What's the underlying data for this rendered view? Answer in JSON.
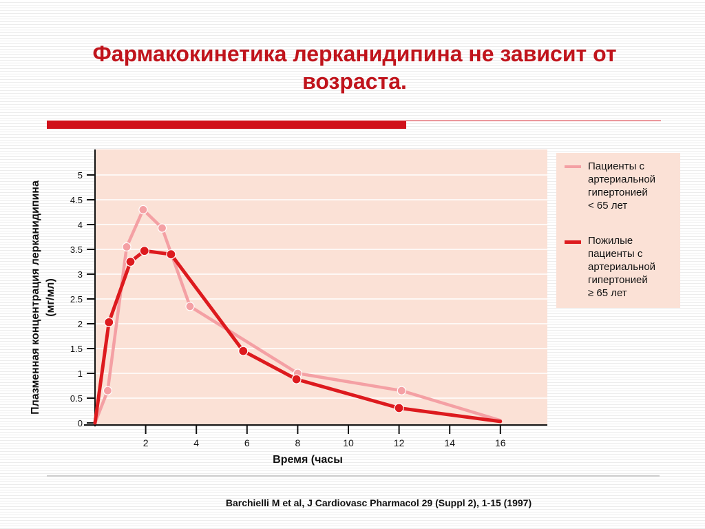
{
  "title_line1": "Фармакокинетика лерканидипина не зависит от",
  "title_line2": "возраста.",
  "colors": {
    "title": "#c0141c",
    "plot_background": "#fbe1d6",
    "series_young": "#f4a0a4",
    "series_elderly": "#dd1a1e",
    "accent_bar": "#d0101a"
  },
  "chart_data": {
    "type": "line",
    "xlabel": "Время  (часы",
    "ylabel_line1": "Плазменная концентрация лерканидипина",
    "ylabel_line2": "(мг/мл)",
    "xlim": [
      0,
      17.5
    ],
    "ylim": [
      0,
      5.5
    ],
    "x_ticks": [
      2,
      4,
      6,
      8,
      10,
      12,
      14,
      16
    ],
    "y_ticks": [
      0,
      0.5,
      1,
      1.5,
      2,
      2.5,
      3,
      3.5,
      4,
      4.5,
      5
    ],
    "x_tick_labels": [
      "2",
      "4",
      "6",
      "8",
      "10",
      "12",
      "14",
      "16"
    ],
    "y_tick_labels": [
      "0",
      "0.5",
      "1",
      "1.5",
      "2",
      "2.5",
      "3",
      "3.5",
      "4",
      "4.5",
      "5"
    ],
    "grid": true,
    "legend_position": "right",
    "series": [
      {
        "name": "Пациенты с артериальной гипертонией < 65 лет",
        "legend_lines": [
          "Пациенты с",
          "артериальной",
          "гипертонией",
          "< 65 лет"
        ],
        "color": "#f4a0a4",
        "x": [
          0,
          0.5,
          1.25,
          1.9,
          2.65,
          3.75,
          8,
          12.1,
          16
        ],
        "y": [
          0,
          0.65,
          3.55,
          4.3,
          3.93,
          2.35,
          1.0,
          0.65,
          0.05
        ],
        "markers": [
          false,
          true,
          true,
          true,
          true,
          true,
          true,
          true,
          false
        ]
      },
      {
        "name": "Пожилые пациенты с артериальной гипертонией ≥ 65 лет",
        "legend_lines": [
          "Пожилые",
          "пациенты с",
          "артериальной",
          "гипертонией",
          "≥ 65 лет"
        ],
        "color": "#dd1a1e",
        "x": [
          0,
          0.55,
          1.4,
          1.95,
          3.0,
          5.85,
          7.95,
          12.0,
          16
        ],
        "y": [
          0,
          2.03,
          3.25,
          3.47,
          3.4,
          1.45,
          0.88,
          0.3,
          0.03
        ],
        "markers": [
          false,
          true,
          true,
          true,
          true,
          true,
          true,
          true,
          false
        ]
      }
    ]
  },
  "citation": "Barchielli M et al, J Cardiovasc Pharmacol 29 (Suppl 2), 1-15 (1997)"
}
